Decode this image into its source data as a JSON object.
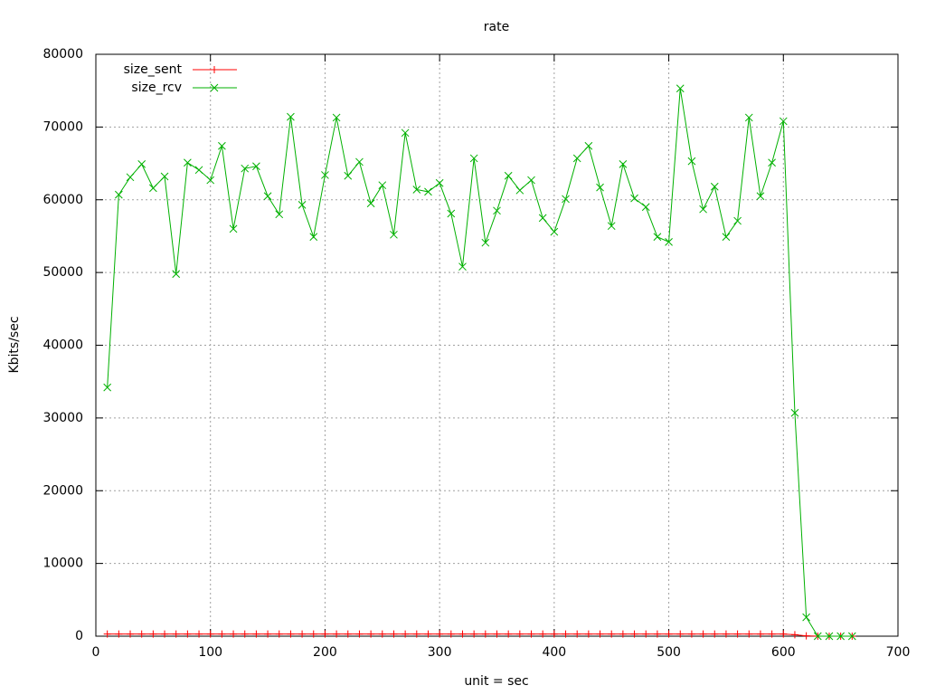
{
  "chart_data": {
    "type": "line",
    "title": "rate",
    "x_label": "unit = sec",
    "y_label": "Kbits/sec",
    "x": [
      10,
      20,
      30,
      40,
      50,
      60,
      70,
      80,
      90,
      100,
      110,
      120,
      130,
      140,
      150,
      160,
      170,
      180,
      190,
      200,
      210,
      220,
      230,
      240,
      250,
      260,
      270,
      280,
      290,
      300,
      310,
      320,
      330,
      340,
      350,
      360,
      370,
      380,
      390,
      400,
      410,
      420,
      430,
      440,
      450,
      460,
      470,
      480,
      490,
      500,
      510,
      520,
      530,
      540,
      550,
      560,
      570,
      580,
      590,
      600,
      610,
      620,
      630,
      640,
      650,
      660
    ],
    "series": [
      {
        "name": "size_sent",
        "color": "#ff0000",
        "marker": "plus",
        "values": [
          300,
          300,
          300,
          300,
          300,
          300,
          300,
          300,
          300,
          300,
          300,
          300,
          300,
          300,
          300,
          300,
          300,
          300,
          300,
          300,
          300,
          300,
          300,
          300,
          300,
          300,
          300,
          300,
          300,
          300,
          300,
          300,
          300,
          300,
          300,
          300,
          300,
          300,
          300,
          300,
          300,
          300,
          300,
          300,
          300,
          300,
          300,
          300,
          300,
          300,
          300,
          300,
          300,
          300,
          300,
          300,
          300,
          300,
          300,
          300,
          200,
          50,
          0,
          0,
          0,
          0
        ]
      },
      {
        "name": "size_rcv",
        "color": "#00b000",
        "marker": "cross",
        "values": [
          34200,
          60700,
          63100,
          64900,
          61600,
          63200,
          49800,
          65100,
          64100,
          62700,
          67400,
          56000,
          64300,
          64600,
          60500,
          58000,
          71400,
          59300,
          54900,
          63400,
          71300,
          63300,
          65200,
          59500,
          62000,
          55200,
          69200,
          61400,
          61100,
          62300,
          58100,
          50800,
          65700,
          54100,
          58500,
          63300,
          61300,
          62700,
          57500,
          55600,
          60100,
          65700,
          67400,
          61700,
          56400,
          64900,
          60200,
          59000,
          54900,
          54200,
          75300,
          65300,
          58700,
          61800,
          54900,
          57100,
          71300,
          60500,
          65100,
          70800,
          30700,
          2600,
          0,
          0,
          0,
          0
        ]
      }
    ],
    "xlim": [
      0,
      700
    ],
    "xticks": [
      0,
      100,
      200,
      300,
      400,
      500,
      600,
      700
    ],
    "ylim": [
      0,
      80000
    ],
    "yticks": [
      0,
      10000,
      20000,
      30000,
      40000,
      50000,
      60000,
      70000,
      80000
    ],
    "grid": true,
    "legend_position": "top-left"
  }
}
